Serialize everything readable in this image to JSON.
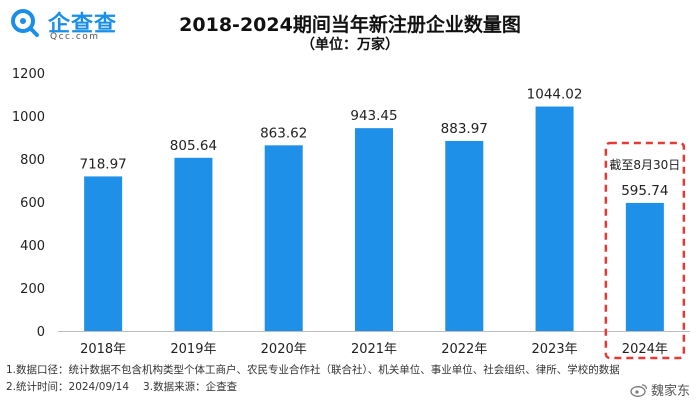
{
  "brand": {
    "name": "企查查",
    "domain": "Qcc.com",
    "color": "#1a8ee8"
  },
  "chart_data": {
    "type": "bar",
    "title": "2018-2024期间当年新注册企业数量图",
    "subtitle": "（单位：万家）",
    "xlabel": "",
    "ylabel": "",
    "ylim": [
      0,
      1200
    ],
    "yticks": [
      0,
      200,
      400,
      600,
      800,
      1000,
      1200
    ],
    "grid": false,
    "categories": [
      "2018年",
      "2019年",
      "2020年",
      "2021年",
      "2022年",
      "2023年",
      "2024年"
    ],
    "values": [
      718.97,
      805.64,
      863.62,
      943.45,
      883.97,
      1044.02,
      595.74
    ],
    "value_labels": [
      "718.97",
      "805.64",
      "863.62",
      "943.45",
      "883.97",
      "1044.02",
      "595.74"
    ],
    "bar_color": "#1e90e8",
    "highlight": {
      "category": "2024年",
      "note": "截至8月30日",
      "color": "#e53935"
    }
  },
  "notes": {
    "line1": "1.数据口径：统计数据不包含机构类型个体工商户、农民专业合作社（联合社）、机关单位、事业单位、社会组织、律所、学校的数据",
    "line2a": "2.统计时间：2024/09/14",
    "line2b": "3.数据来源：企查查"
  },
  "watermark": "魏家东"
}
